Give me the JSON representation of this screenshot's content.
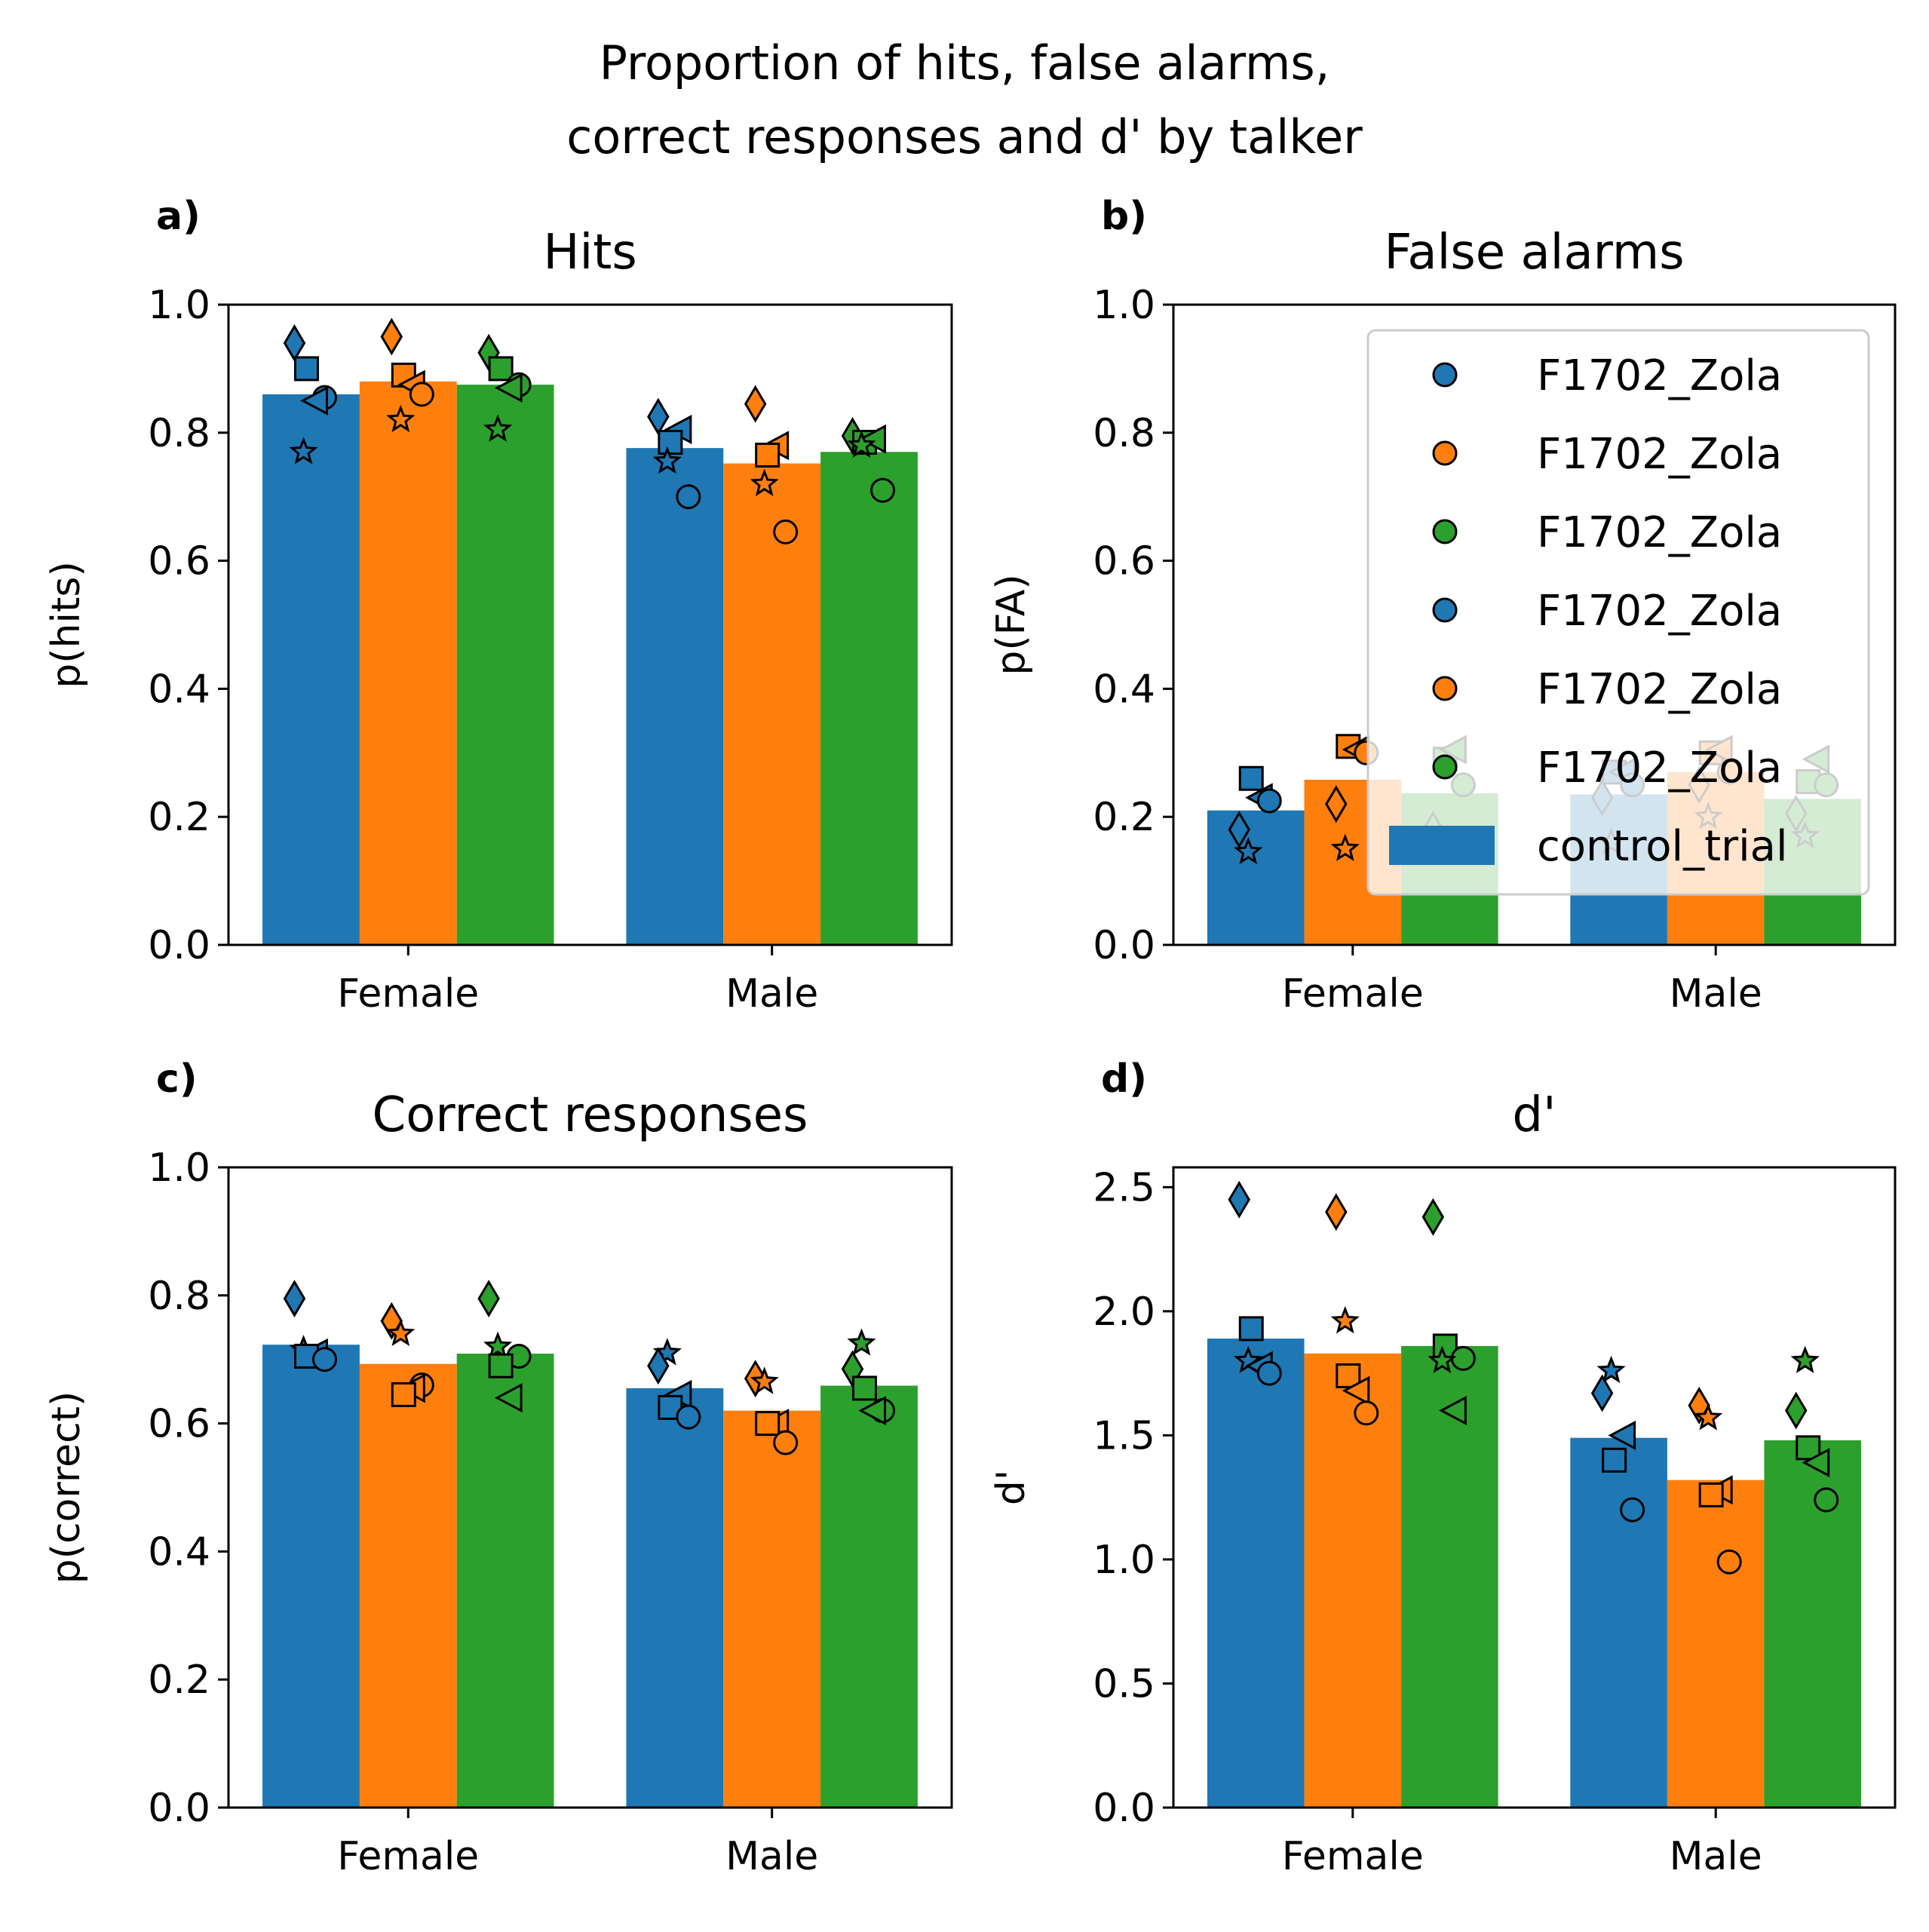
{
  "figure": {
    "title_line1": "Proportion of hits, false alarms,",
    "title_line2": "correct responses and d' by talker"
  },
  "colors": {
    "blue": "#1f77b4",
    "orange": "#ff7f0e",
    "green": "#2ca02c",
    "legend_edge": "#cccccc",
    "marker_edge": "#000000"
  },
  "legend": {
    "placement": "upper-right of panel b",
    "entries": [
      {
        "label": "F1702_Zola",
        "kind": "circle",
        "color": "#1f77b4"
      },
      {
        "label": "F1702_Zola",
        "kind": "circle",
        "color": "#ff7f0e"
      },
      {
        "label": "F1702_Zola",
        "kind": "circle",
        "color": "#2ca02c"
      },
      {
        "label": "F1702_Zola",
        "kind": "circle",
        "color": "#1f77b4"
      },
      {
        "label": "F1702_Zola",
        "kind": "circle",
        "color": "#ff7f0e"
      },
      {
        "label": "F1702_Zola",
        "kind": "circle",
        "color": "#2ca02c"
      },
      {
        "label": "control_trial",
        "kind": "bar",
        "color": "#1f77b4"
      }
    ]
  },
  "chart_data": [
    {
      "id": "a",
      "panel_label": "a)",
      "type": "bar",
      "title": "Hits",
      "ylabel": "p(hits)",
      "ylim": [
        0,
        1.0
      ],
      "yticks": [
        0.0,
        0.2,
        0.4,
        0.6,
        0.8,
        1.0
      ],
      "ytick_labels": [
        "0.0",
        "0.2",
        "0.4",
        "0.6",
        "0.8",
        "1.0"
      ],
      "categories": [
        "Female",
        "Male"
      ],
      "bars": [
        [
          0.86,
          0.88,
          0.875
        ],
        [
          0.776,
          0.752,
          0.77
        ]
      ],
      "points": [
        [
          [
            {
              "m": "diamond",
              "v": 0.94
            },
            {
              "m": "square",
              "v": 0.9
            },
            {
              "m": "circle",
              "v": 0.855
            },
            {
              "m": "tri-left",
              "v": 0.85
            },
            {
              "m": "star",
              "v": 0.77
            }
          ],
          [
            {
              "m": "diamond",
              "v": 0.95
            },
            {
              "m": "square",
              "v": 0.89
            },
            {
              "m": "tri-left",
              "v": 0.875
            },
            {
              "m": "circle",
              "v": 0.86
            },
            {
              "m": "star",
              "v": 0.82
            }
          ],
          [
            {
              "m": "diamond",
              "v": 0.925
            },
            {
              "m": "square",
              "v": 0.9
            },
            {
              "m": "circle",
              "v": 0.875
            },
            {
              "m": "tri-left",
              "v": 0.87
            },
            {
              "m": "star",
              "v": 0.805
            }
          ]
        ],
        [
          [
            {
              "m": "diamond",
              "v": 0.825
            },
            {
              "m": "tri-left",
              "v": 0.805
            },
            {
              "m": "square",
              "v": 0.785
            },
            {
              "m": "star",
              "v": 0.755
            },
            {
              "m": "circle",
              "v": 0.7
            }
          ],
          [
            {
              "m": "diamond",
              "v": 0.845
            },
            {
              "m": "tri-left",
              "v": 0.78
            },
            {
              "m": "square",
              "v": 0.765
            },
            {
              "m": "star",
              "v": 0.72
            },
            {
              "m": "circle",
              "v": 0.645
            }
          ],
          [
            {
              "m": "diamond",
              "v": 0.795
            },
            {
              "m": "square",
              "v": 0.785
            },
            {
              "m": "tri-left",
              "v": 0.79
            },
            {
              "m": "star",
              "v": 0.78
            },
            {
              "m": "circle",
              "v": 0.71
            }
          ]
        ]
      ]
    },
    {
      "id": "b",
      "panel_label": "b)",
      "type": "bar",
      "title": "False alarms",
      "ylabel": "p(FA)",
      "ylim": [
        0,
        1.0
      ],
      "yticks": [
        0.0,
        0.2,
        0.4,
        0.6,
        0.8,
        1.0
      ],
      "ytick_labels": [
        "0.0",
        "0.2",
        "0.4",
        "0.6",
        "0.8",
        "1.0"
      ],
      "categories": [
        "Female",
        "Male"
      ],
      "bars": [
        [
          0.21,
          0.258,
          0.237
        ],
        [
          0.235,
          0.27,
          0.228
        ]
      ],
      "points": [
        [
          [
            {
              "m": "square",
              "v": 0.26
            },
            {
              "m": "tri-left",
              "v": 0.23
            },
            {
              "m": "circle",
              "v": 0.225
            },
            {
              "m": "diamond",
              "v": 0.18
            },
            {
              "m": "star",
              "v": 0.145
            }
          ],
          [
            {
              "m": "square",
              "v": 0.31
            },
            {
              "m": "tri-left",
              "v": 0.305
            },
            {
              "m": "circle",
              "v": 0.3
            },
            {
              "m": "diamond",
              "v": 0.22
            },
            {
              "m": "star",
              "v": 0.15
            }
          ],
          [
            {
              "m": "square",
              "v": 0.29
            },
            {
              "m": "tri-left",
              "v": 0.305
            },
            {
              "m": "circle",
              "v": 0.25
            },
            {
              "m": "diamond",
              "v": 0.18
            },
            {
              "m": "star",
              "v": 0.15
            }
          ]
        ],
        [
          [
            {
              "m": "square",
              "v": 0.27
            },
            {
              "m": "tri-left",
              "v": 0.27
            },
            {
              "m": "circle",
              "v": 0.25
            },
            {
              "m": "diamond",
              "v": 0.23
            },
            {
              "m": "star",
              "v": 0.16
            }
          ],
          [
            {
              "m": "square",
              "v": 0.3
            },
            {
              "m": "tri-left",
              "v": 0.305
            },
            {
              "m": "circle",
              "v": 0.27
            },
            {
              "m": "diamond",
              "v": 0.25
            },
            {
              "m": "star",
              "v": 0.2
            }
          ],
          [
            {
              "m": "square",
              "v": 0.255
            },
            {
              "m": "tri-left",
              "v": 0.29
            },
            {
              "m": "circle",
              "v": 0.25
            },
            {
              "m": "diamond",
              "v": 0.205
            },
            {
              "m": "star",
              "v": 0.17
            }
          ]
        ]
      ]
    },
    {
      "id": "c",
      "panel_label": "c)",
      "type": "bar",
      "title": "Correct responses",
      "ylabel": "p(correct)",
      "ylim": [
        0,
        1.0
      ],
      "yticks": [
        0.0,
        0.2,
        0.4,
        0.6,
        0.8,
        1.0
      ],
      "ytick_labels": [
        "0.0",
        "0.2",
        "0.4",
        "0.6",
        "0.8",
        "1.0"
      ],
      "categories": [
        "Female",
        "Male"
      ],
      "bars": [
        [
          0.723,
          0.693,
          0.709
        ],
        [
          0.655,
          0.62,
          0.659
        ]
      ],
      "points": [
        [
          [
            {
              "m": "diamond",
              "v": 0.795
            },
            {
              "m": "star",
              "v": 0.715
            },
            {
              "m": "tri-left",
              "v": 0.71
            },
            {
              "m": "square",
              "v": 0.705
            },
            {
              "m": "circle",
              "v": 0.7
            }
          ],
          [
            {
              "m": "diamond",
              "v": 0.76
            },
            {
              "m": "star",
              "v": 0.74
            },
            {
              "m": "circle",
              "v": 0.66
            },
            {
              "m": "tri-left",
              "v": 0.655
            },
            {
              "m": "square",
              "v": 0.645
            }
          ],
          [
            {
              "m": "diamond",
              "v": 0.795
            },
            {
              "m": "star",
              "v": 0.72
            },
            {
              "m": "circle",
              "v": 0.705
            },
            {
              "m": "square",
              "v": 0.69
            },
            {
              "m": "tri-left",
              "v": 0.64
            }
          ]
        ],
        [
          [
            {
              "m": "star",
              "v": 0.71
            },
            {
              "m": "diamond",
              "v": 0.69
            },
            {
              "m": "tri-left",
              "v": 0.645
            },
            {
              "m": "square",
              "v": 0.625
            },
            {
              "m": "circle",
              "v": 0.61
            }
          ],
          [
            {
              "m": "diamond",
              "v": 0.67
            },
            {
              "m": "star",
              "v": 0.665
            },
            {
              "m": "tri-left",
              "v": 0.6
            },
            {
              "m": "square",
              "v": 0.6
            },
            {
              "m": "circle",
              "v": 0.57
            }
          ],
          [
            {
              "m": "star",
              "v": 0.725
            },
            {
              "m": "diamond",
              "v": 0.685
            },
            {
              "m": "square",
              "v": 0.655
            },
            {
              "m": "circle",
              "v": 0.62
            },
            {
              "m": "tri-left",
              "v": 0.62
            }
          ]
        ]
      ]
    },
    {
      "id": "d",
      "panel_label": "d)",
      "type": "bar",
      "title": "d'",
      "ylabel": "d'",
      "ylim": [
        0,
        2.58
      ],
      "yticks": [
        0.0,
        0.5,
        1.0,
        1.5,
        2.0,
        2.5
      ],
      "ytick_labels": [
        "0.0",
        "0.5",
        "1.0",
        "1.5",
        "2.0",
        "2.5"
      ],
      "categories": [
        "Female",
        "Male"
      ],
      "bars": [
        [
          1.89,
          1.83,
          1.86
        ],
        [
          1.49,
          1.32,
          1.48
        ]
      ],
      "points": [
        [
          [
            {
              "m": "diamond",
              "v": 2.45
            },
            {
              "m": "square",
              "v": 1.93
            },
            {
              "m": "star",
              "v": 1.8
            },
            {
              "m": "tri-left",
              "v": 1.78
            },
            {
              "m": "circle",
              "v": 1.75
            }
          ],
          [
            {
              "m": "diamond",
              "v": 2.4
            },
            {
              "m": "star",
              "v": 1.96
            },
            {
              "m": "square",
              "v": 1.74
            },
            {
              "m": "tri-left",
              "v": 1.68
            },
            {
              "m": "circle",
              "v": 1.59
            }
          ],
          [
            {
              "m": "diamond",
              "v": 2.38
            },
            {
              "m": "square",
              "v": 1.86
            },
            {
              "m": "circle",
              "v": 1.81
            },
            {
              "m": "star",
              "v": 1.8
            },
            {
              "m": "tri-left",
              "v": 1.6
            }
          ]
        ],
        [
          [
            {
              "m": "star",
              "v": 1.76
            },
            {
              "m": "diamond",
              "v": 1.67
            },
            {
              "m": "tri-left",
              "v": 1.5
            },
            {
              "m": "square",
              "v": 1.4
            },
            {
              "m": "circle",
              "v": 1.2
            }
          ],
          [
            {
              "m": "diamond",
              "v": 1.62
            },
            {
              "m": "star",
              "v": 1.57
            },
            {
              "m": "tri-left",
              "v": 1.28
            },
            {
              "m": "square",
              "v": 1.26
            },
            {
              "m": "circle",
              "v": 0.99
            }
          ],
          [
            {
              "m": "star",
              "v": 1.8
            },
            {
              "m": "diamond",
              "v": 1.6
            },
            {
              "m": "square",
              "v": 1.45
            },
            {
              "m": "tri-left",
              "v": 1.39
            },
            {
              "m": "circle",
              "v": 1.24
            }
          ]
        ]
      ]
    }
  ]
}
